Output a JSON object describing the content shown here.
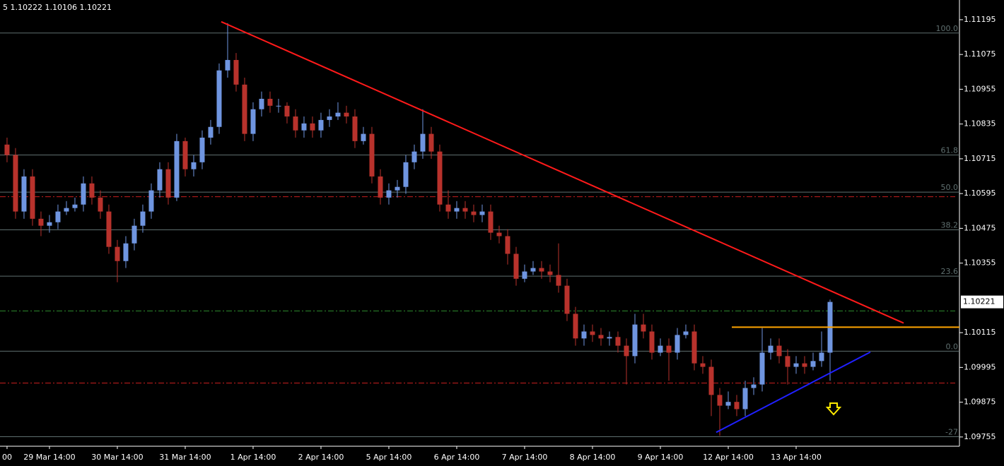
{
  "chart_data": {
    "type": "candlestick",
    "header": "5 1.10222 1.10106 1.10221",
    "price_label": "1.10221",
    "bull_color": "#6f95e0",
    "bear_color": "#b8322c",
    "categories": [
      "00",
      null,
      null,
      null,
      null,
      "29 Mar 14:00",
      null,
      null,
      null,
      null,
      null,
      null,
      null,
      "30 Mar 14:00",
      null,
      null,
      null,
      null,
      null,
      null,
      null,
      "31 Mar 14:00",
      null,
      null,
      null,
      null,
      null,
      null,
      null,
      "1 Apr 14:00",
      null,
      null,
      null,
      null,
      null,
      null,
      null,
      "2 Apr 14:00",
      null,
      null,
      null,
      null,
      null,
      null,
      null,
      "5 Apr 14:00",
      null,
      null,
      null,
      null,
      null,
      null,
      null,
      "6 Apr 14:00",
      null,
      null,
      null,
      null,
      null,
      null,
      null,
      "7 Apr 14:00",
      null,
      null,
      null,
      null,
      null,
      null,
      null,
      "8 Apr 14:00",
      null,
      null,
      null,
      null,
      null,
      null,
      null,
      "9 Apr 14:00",
      null,
      null,
      null,
      null,
      null,
      null,
      null,
      "12 Apr 14:00",
      null,
      null,
      null,
      null,
      null,
      null,
      null,
      "13 Apr 14:00",
      null,
      null,
      null,
      null
    ],
    "open": [
      1.10764,
      1.10728,
      1.10533,
      1.10654,
      1.10508,
      1.10484,
      1.10496,
      1.10533,
      1.10545,
      1.10557,
      1.1063,
      1.10581,
      1.10533,
      1.10411,
      1.10362,
      1.10423,
      1.10484,
      1.10533,
      1.10606,
      1.10679,
      1.10581,
      1.10776,
      1.10679,
      1.10703,
      1.10788,
      1.10825,
      1.1102,
      1.11056,
      1.10971,
      1.10801,
      1.10886,
      1.10922,
      1.10898,
      1.10898,
      1.10861,
      1.10813,
      1.10837,
      1.10813,
      1.10849,
      1.10861,
      1.10874,
      1.10861,
      1.10776,
      1.10801,
      1.10654,
      1.10581,
      1.10606,
      1.10618,
      1.10703,
      1.1074,
      1.10801,
      1.1074,
      1.10557,
      1.10533,
      1.10545,
      1.10533,
      1.10521,
      1.10533,
      1.1046,
      1.10448,
      1.10387,
      1.10301,
      1.10326,
      1.10338,
      1.10326,
      1.10314,
      1.10277,
      1.1018,
      1.10095,
      1.10119,
      1.10107,
      1.10095,
      1.101,
      1.1007,
      1.10034,
      1.10143,
      1.10119,
      1.10046,
      1.1007,
      1.10046,
      1.10107,
      1.10119,
      1.10009,
      1.09997,
      1.099,
      1.09863,
      1.09876,
      1.09851,
      1.09924,
      1.09936,
      1.10046,
      1.1007,
      1.10034,
      1.09997,
      1.10009,
      1.09997,
      1.10017,
      1.10046
    ],
    "high": [
      1.10788,
      1.10752,
      1.10679,
      1.10679,
      1.10533,
      1.10521,
      1.10557,
      1.10569,
      1.10581,
      1.10654,
      1.10654,
      1.10606,
      1.10557,
      1.10435,
      1.10448,
      1.10508,
      1.10557,
      1.1063,
      1.10703,
      1.10703,
      1.10801,
      1.10788,
      1.10728,
      1.10813,
      1.10849,
      1.11044,
      1.11183,
      1.1108,
      1.10995,
      1.1091,
      1.10947,
      1.10947,
      1.10922,
      1.1091,
      1.10886,
      1.10861,
      1.10861,
      1.10874,
      1.10886,
      1.1091,
      1.10898,
      1.10886,
      1.10825,
      1.10825,
      1.10679,
      1.1063,
      1.10642,
      1.10728,
      1.10764,
      1.10886,
      1.10825,
      1.10764,
      1.10606,
      1.10569,
      1.10569,
      1.10557,
      1.10557,
      1.10557,
      1.10484,
      1.10472,
      1.10411,
      1.1035,
      1.10362,
      1.10362,
      1.1035,
      1.10423,
      1.10301,
      1.10204,
      1.10143,
      1.10143,
      1.10131,
      1.10119,
      1.10119,
      1.10095,
      1.1018,
      1.1018,
      1.10143,
      1.10095,
      1.10095,
      1.10131,
      1.10143,
      1.10143,
      1.10034,
      1.10022,
      1.09924,
      1.09912,
      1.099,
      1.09949,
      1.09961,
      1.10131,
      1.10095,
      1.10095,
      1.10058,
      1.10034,
      1.10034,
      1.10046,
      1.10119,
      1.10229
    ],
    "low": [
      1.10703,
      1.10508,
      1.10508,
      1.10484,
      1.10448,
      1.1046,
      1.10472,
      1.10521,
      1.10533,
      1.10533,
      1.10557,
      1.10508,
      1.10387,
      1.10289,
      1.10338,
      1.10399,
      1.1046,
      1.10508,
      1.10581,
      1.10557,
      1.10569,
      1.10654,
      1.10654,
      1.10679,
      1.10764,
      1.10801,
      1.10995,
      1.10947,
      1.10776,
      1.10776,
      1.10861,
      1.10874,
      1.10874,
      1.10837,
      1.10788,
      1.10788,
      1.10788,
      1.10788,
      1.10825,
      1.10849,
      1.10837,
      1.10752,
      1.10764,
      1.1063,
      1.10557,
      1.10557,
      1.10581,
      1.10594,
      1.10679,
      1.10715,
      1.10715,
      1.10533,
      1.10508,
      1.10508,
      1.10508,
      1.10496,
      1.10496,
      1.10435,
      1.10423,
      1.1035,
      1.10277,
      1.10289,
      1.10314,
      1.10301,
      1.10289,
      1.10253,
      1.10155,
      1.1007,
      1.1007,
      1.10083,
      1.1007,
      1.1007,
      1.10046,
      1.09936,
      1.10009,
      1.10095,
      1.10022,
      1.10034,
      1.09949,
      1.10022,
      1.10095,
      1.09985,
      1.09973,
      1.09827,
      1.09759,
      1.09851,
      1.09827,
      1.09827,
      1.099,
      1.09912,
      1.10022,
      1.10009,
      1.09936,
      1.09973,
      1.09973,
      1.09985,
      1.09997,
      1.09949
    ],
    "close": [
      1.10728,
      1.10533,
      1.10654,
      1.10508,
      1.10484,
      1.10496,
      1.10533,
      1.10545,
      1.10557,
      1.1063,
      1.10581,
      1.10533,
      1.10411,
      1.10362,
      1.10423,
      1.10484,
      1.10533,
      1.10606,
      1.10679,
      1.10581,
      1.10776,
      1.10679,
      1.10703,
      1.10788,
      1.10825,
      1.1102,
      1.11056,
      1.10971,
      1.10801,
      1.10886,
      1.10922,
      1.10898,
      1.10898,
      1.10861,
      1.10813,
      1.10837,
      1.10813,
      1.10849,
      1.10861,
      1.10874,
      1.10861,
      1.10776,
      1.10801,
      1.10654,
      1.10581,
      1.10606,
      1.10618,
      1.10703,
      1.1074,
      1.10801,
      1.1074,
      1.10557,
      1.10533,
      1.10545,
      1.10533,
      1.10521,
      1.10533,
      1.1046,
      1.10448,
      1.10387,
      1.10301,
      1.10326,
      1.10338,
      1.10326,
      1.10314,
      1.10277,
      1.1018,
      1.10095,
      1.10119,
      1.10107,
      1.10095,
      1.101,
      1.1007,
      1.10034,
      1.10143,
      1.10119,
      1.10046,
      1.1007,
      1.10046,
      1.10107,
      1.10119,
      1.10009,
      1.09997,
      1.099,
      1.09863,
      1.09876,
      1.09851,
      1.09924,
      1.09936,
      1.10046,
      1.1007,
      1.10034,
      1.09997,
      1.10009,
      1.09997,
      1.10017,
      1.10046,
      1.10221
    ],
    "xlim": [
      -0.83,
      112.25
    ],
    "ylim": [
      1.09723,
      1.11263
    ],
    "yticks": [
      1.11195,
      1.11075,
      1.10955,
      1.10835,
      1.10715,
      1.10595,
      1.10475,
      1.10355,
      1.10115,
      1.09995,
      1.09875,
      1.09755
    ],
    "fib_color": "#5f6f6f",
    "fib_levels": [
      {
        "value": 1.11149,
        "label": "100.0"
      },
      {
        "value": 1.10728,
        "label": "61.8"
      },
      {
        "value": 1.106,
        "label": "50.0"
      },
      {
        "value": 1.1047,
        "label": "38.2"
      },
      {
        "value": 1.1031,
        "label": "23.6"
      },
      {
        "value": 1.10051,
        "label": "0.0"
      },
      {
        "value": 1.09756,
        "label": "-27"
      }
    ],
    "hlines": [
      {
        "value": 1.10584,
        "color": "#c81e1e"
      },
      {
        "value": 1.09941,
        "color": "#c81e1e"
      },
      {
        "value": 1.1019,
        "color": "#2e8b2e"
      }
    ],
    "trendlines": [
      {
        "color": "#ff1a1a",
        "x": [
          25.25,
          105.67
        ],
        "y": [
          1.11188,
          1.10148
        ]
      },
      {
        "color": "#2020ff",
        "x": [
          83.58,
          101.75
        ],
        "y": [
          1.09771,
          1.10048
        ]
      },
      {
        "color": "#ffa500",
        "x": [
          85.42,
          112.25
        ],
        "y": [
          1.10134,
          1.10134
        ]
      }
    ]
  }
}
